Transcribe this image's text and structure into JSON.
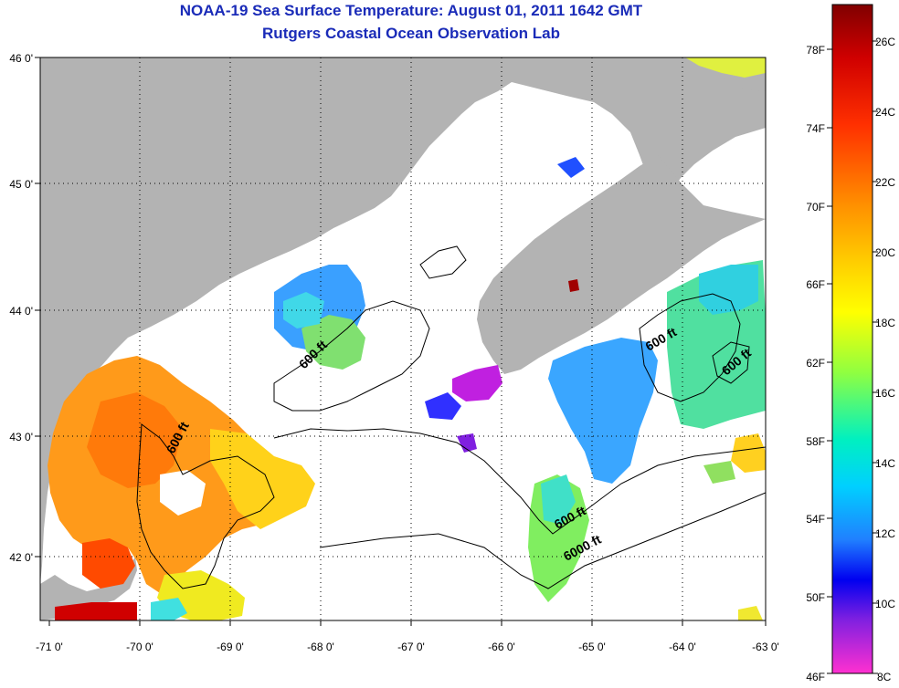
{
  "title_line1": "NOAA-19 Sea Surface Temperature:  August 01, 2011 1642 GMT",
  "title_line2": "Rutgers Coastal Ocean Observation Lab",
  "map": {
    "lon_ticks": [
      "-71 0'",
      "-70 0'",
      "-69 0'",
      "-68 0'",
      "-67 0'",
      "-66 0'",
      "-65 0'",
      "-64 0'",
      "-63 0'"
    ],
    "lat_ticks": [
      "46 0'",
      "45 0'",
      "44 0'",
      "43 0'",
      "42 0'"
    ],
    "land_color": "#b3b3b3",
    "nodata_color": "#ffffff",
    "contour_labels": [
      {
        "text": "600 ft"
      },
      {
        "text": "600 ft"
      },
      {
        "text": "600 ft"
      },
      {
        "text": "600 ft"
      },
      {
        "text": "600 ft"
      },
      {
        "text": "6000 ft"
      }
    ]
  },
  "colorbar": {
    "fahrenheit_labels": [
      "78F",
      "74F",
      "70F",
      "66F",
      "62F",
      "58F",
      "54F",
      "50F",
      "46F"
    ],
    "celsius_labels": [
      "26C",
      "24C",
      "22C",
      "20C",
      "18C",
      "16C",
      "14C",
      "12C",
      "10C",
      "8C"
    ],
    "colors": [
      "#8b0000",
      "#ff0000",
      "#ff8c00",
      "#ffff00",
      "#7fff3f",
      "#00ffff",
      "#1e90ff",
      "#0000ff",
      "#8b00ff",
      "#ff33cc"
    ]
  }
}
